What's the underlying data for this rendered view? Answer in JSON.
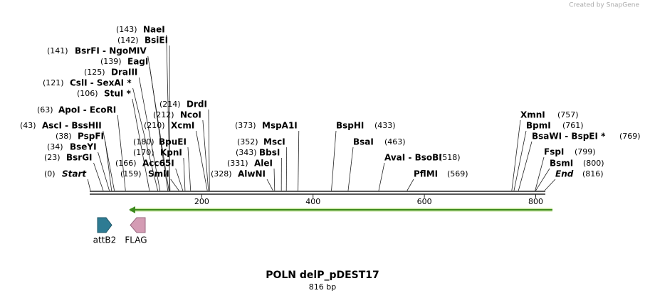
{
  "credit": "Created by SnapGene",
  "title": "POLN delP_pDEST17",
  "sequence_length": {
    "value": 816,
    "label": "816 bp"
  },
  "ruler": {
    "range": [
      0,
      816
    ],
    "ticks": [
      200,
      400,
      600,
      800
    ]
  },
  "sites": [
    {
      "name": "Start",
      "pos": {
        "value": 0,
        "label": "(0)"
      }
    },
    {
      "name": "BsrGI",
      "pos": {
        "value": 23,
        "label": "(23)"
      }
    },
    {
      "name": "BseYI",
      "pos": {
        "value": 34,
        "label": "(34)"
      }
    },
    {
      "name": "PspFI",
      "pos": {
        "value": 38,
        "label": "(38)"
      }
    },
    {
      "name": "AscI  -  BssHII",
      "pos": {
        "value": 43,
        "label": "(43)"
      }
    },
    {
      "name": "ApoI  -  EcoRI",
      "pos": {
        "value": 63,
        "label": "(63)"
      }
    },
    {
      "name": "StuI *",
      "pos": {
        "value": 106,
        "label": "(106)"
      }
    },
    {
      "name": "CslI  -  SexAI *",
      "pos": {
        "value": 121,
        "label": "(121)"
      }
    },
    {
      "name": "DraIII",
      "pos": {
        "value": 125,
        "label": "(125)"
      }
    },
    {
      "name": "EagI",
      "pos": {
        "value": 139,
        "label": "(139)"
      }
    },
    {
      "name": "BsrFI  -  NgoMIV",
      "pos": {
        "value": 141,
        "label": "(141)"
      }
    },
    {
      "name": "BsiEI",
      "pos": {
        "value": 142,
        "label": "(142)"
      }
    },
    {
      "name": "NaeI",
      "pos": {
        "value": 143,
        "label": "(143)"
      }
    },
    {
      "name": "SmlI",
      "pos": {
        "value": 159,
        "label": "(159)"
      }
    },
    {
      "name": "Acc65I",
      "pos": {
        "value": 166,
        "label": "(166)"
      }
    },
    {
      "name": "KpnI",
      "pos": {
        "value": 170,
        "label": "(170)"
      }
    },
    {
      "name": "BpuEI",
      "pos": {
        "value": 180,
        "label": "(180)"
      }
    },
    {
      "name": "XcmI",
      "pos": {
        "value": 210,
        "label": "(210)"
      }
    },
    {
      "name": "NcoI",
      "pos": {
        "value": 212,
        "label": "(212)"
      }
    },
    {
      "name": "DrdI",
      "pos": {
        "value": 214,
        "label": "(214)"
      }
    },
    {
      "name": "AlwNI",
      "pos": {
        "value": 328,
        "label": "(328)"
      }
    },
    {
      "name": "AleI",
      "pos": {
        "value": 331,
        "label": "(331)"
      }
    },
    {
      "name": "BbsI",
      "pos": {
        "value": 343,
        "label": "(343)"
      }
    },
    {
      "name": "MscI",
      "pos": {
        "value": 352,
        "label": "(352)"
      }
    },
    {
      "name": "MspA1I",
      "pos": {
        "value": 373,
        "label": "(373)"
      }
    },
    {
      "name": "BspHI",
      "pos": {
        "value": 433,
        "label": "(433)"
      }
    },
    {
      "name": "BsaI",
      "pos": {
        "value": 463,
        "label": "(463)"
      }
    },
    {
      "name": "AvaI  -  BsoBI",
      "pos": {
        "value": 518,
        "label": "(518)"
      }
    },
    {
      "name": "PflMI",
      "pos": {
        "value": 569,
        "label": "(569)"
      }
    },
    {
      "name": "XmnI",
      "pos": {
        "value": 757,
        "label": "(757)"
      }
    },
    {
      "name": "BpmI",
      "pos": {
        "value": 761,
        "label": "(761)"
      }
    },
    {
      "name": "BsaWI  -  BspEI *",
      "pos": {
        "value": 769,
        "label": "(769)"
      }
    },
    {
      "name": "FspI",
      "pos": {
        "value": 799,
        "label": "(799)"
      }
    },
    {
      "name": "BsmI",
      "pos": {
        "value": 800,
        "label": "(800)"
      }
    },
    {
      "name": "End",
      "pos": {
        "value": 816,
        "label": "(816)"
      }
    }
  ],
  "features": [
    {
      "name": "attB2"
    },
    {
      "name": "FLAG"
    }
  ]
}
